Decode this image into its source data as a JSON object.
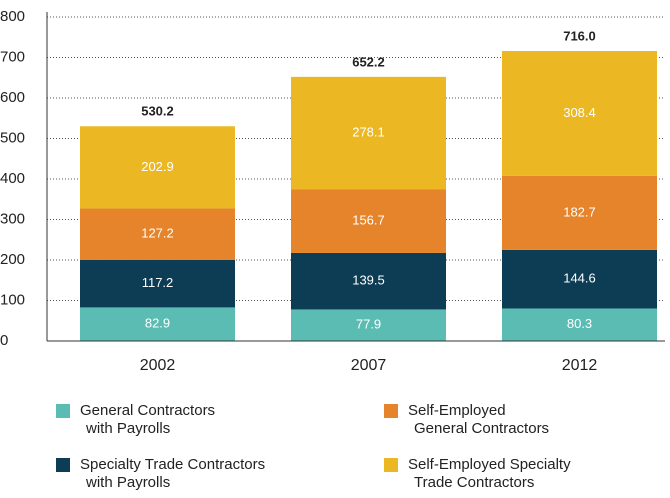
{
  "chart_data": {
    "type": "stacked_bar",
    "categories": [
      "2002",
      "2007",
      "2012"
    ],
    "series": [
      {
        "name": "General Contractors\nwith Payrolls",
        "color": "#5bbcb4",
        "values": [
          82.9,
          77.9,
          80.3
        ]
      },
      {
        "name": "Specialty Trade Contractors\nwith Payrolls",
        "color": "#0d3c55",
        "values": [
          117.2,
          139.5,
          144.6
        ]
      },
      {
        "name": "Self-Employed\nGeneral Contractors",
        "color": "#e5842a",
        "values": [
          127.2,
          156.7,
          182.7
        ]
      },
      {
        "name": "Self-Employed Specialty\nTrade Contractors",
        "color": "#ebb824",
        "values": [
          202.9,
          278.1,
          308.4
        ]
      }
    ],
    "totals": [
      530.2,
      652.2,
      716
    ],
    "total_labels": [
      "530.2",
      "652.2",
      "716.0"
    ],
    "ylim": [
      0,
      800
    ],
    "yticks": [
      0,
      100,
      200,
      300,
      400,
      500,
      600,
      700,
      800
    ],
    "grid": true
  }
}
